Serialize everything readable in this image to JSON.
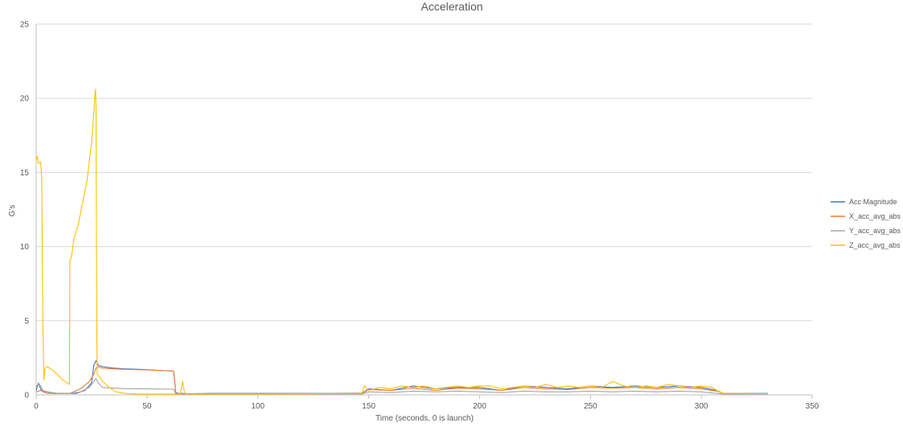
{
  "chart_data": {
    "type": "line",
    "title": "Acceleration",
    "xlabel": "Time (seconds, 0 is launch)",
    "ylabel": "G's",
    "xlim": [
      0,
      350
    ],
    "ylim": [
      0,
      25
    ],
    "xticks": [
      0,
      50,
      100,
      150,
      200,
      250,
      300,
      350
    ],
    "yticks": [
      0,
      5,
      10,
      15,
      20,
      25
    ],
    "grid": "horizontal",
    "legend_position": "right",
    "series": [
      {
        "name": "Acc Magnitude",
        "color": "#4472c4",
        "points": [
          [
            0,
            0.3
          ],
          [
            1,
            0.8
          ],
          [
            2,
            0.4
          ],
          [
            3,
            0.2
          ],
          [
            5,
            0.2
          ],
          [
            8,
            0.1
          ],
          [
            12,
            0.1
          ],
          [
            15,
            0.1
          ],
          [
            18,
            0.1
          ],
          [
            22,
            0.3
          ],
          [
            25,
            0.8
          ],
          [
            26,
            2.0
          ],
          [
            27,
            2.3
          ],
          [
            28,
            2.0
          ],
          [
            30,
            1.9
          ],
          [
            35,
            1.8
          ],
          [
            40,
            1.75
          ],
          [
            50,
            1.7
          ],
          [
            55,
            1.65
          ],
          [
            62,
            1.6
          ],
          [
            63,
            0.15
          ],
          [
            64,
            0.1
          ],
          [
            70,
            0.08
          ],
          [
            80,
            0.1
          ],
          [
            100,
            0.1
          ],
          [
            130,
            0.1
          ],
          [
            147,
            0.12
          ],
          [
            150,
            0.4
          ],
          [
            160,
            0.3
          ],
          [
            170,
            0.6
          ],
          [
            180,
            0.4
          ],
          [
            190,
            0.5
          ],
          [
            200,
            0.5
          ],
          [
            210,
            0.3
          ],
          [
            220,
            0.6
          ],
          [
            230,
            0.5
          ],
          [
            240,
            0.4
          ],
          [
            250,
            0.6
          ],
          [
            260,
            0.5
          ],
          [
            270,
            0.6
          ],
          [
            280,
            0.5
          ],
          [
            290,
            0.6
          ],
          [
            300,
            0.5
          ],
          [
            307,
            0.3
          ],
          [
            310,
            0.1
          ],
          [
            330,
            0.1
          ]
        ]
      },
      {
        "name": "X_acc_avg_abs",
        "color": "#ed7d31",
        "points": [
          [
            0,
            0.2
          ],
          [
            2,
            0.3
          ],
          [
            5,
            0.1
          ],
          [
            10,
            0.1
          ],
          [
            15,
            0.1
          ],
          [
            20,
            0.4
          ],
          [
            24,
            0.9
          ],
          [
            26,
            1.4
          ],
          [
            27,
            1.8
          ],
          [
            28,
            1.9
          ],
          [
            30,
            1.8
          ],
          [
            35,
            1.75
          ],
          [
            40,
            1.72
          ],
          [
            50,
            1.68
          ],
          [
            55,
            1.65
          ],
          [
            62,
            1.6
          ],
          [
            63,
            0.1
          ],
          [
            70,
            0.08
          ],
          [
            100,
            0.08
          ],
          [
            147,
            0.1
          ],
          [
            150,
            0.35
          ],
          [
            160,
            0.3
          ],
          [
            170,
            0.45
          ],
          [
            180,
            0.3
          ],
          [
            190,
            0.45
          ],
          [
            200,
            0.4
          ],
          [
            210,
            0.3
          ],
          [
            220,
            0.5
          ],
          [
            230,
            0.4
          ],
          [
            240,
            0.35
          ],
          [
            250,
            0.5
          ],
          [
            260,
            0.45
          ],
          [
            270,
            0.5
          ],
          [
            280,
            0.4
          ],
          [
            290,
            0.5
          ],
          [
            300,
            0.4
          ],
          [
            307,
            0.25
          ],
          [
            310,
            0.1
          ],
          [
            330,
            0.08
          ]
        ]
      },
      {
        "name": "Y_acc_avg_abs",
        "color": "#a5a5a5",
        "points": [
          [
            0,
            0.5
          ],
          [
            1,
            0.8
          ],
          [
            2,
            0.6
          ],
          [
            3,
            0.3
          ],
          [
            5,
            0.2
          ],
          [
            10,
            0.1
          ],
          [
            15,
            0.1
          ],
          [
            20,
            0.2
          ],
          [
            24,
            0.5
          ],
          [
            26,
            0.9
          ],
          [
            27,
            1.1
          ],
          [
            28,
            0.8
          ],
          [
            30,
            0.5
          ],
          [
            35,
            0.45
          ],
          [
            40,
            0.42
          ],
          [
            50,
            0.4
          ],
          [
            62,
            0.38
          ],
          [
            63,
            0.05
          ],
          [
            70,
            0.05
          ],
          [
            100,
            0.05
          ],
          [
            147,
            0.06
          ],
          [
            150,
            0.2
          ],
          [
            160,
            0.15
          ],
          [
            170,
            0.25
          ],
          [
            180,
            0.2
          ],
          [
            190,
            0.25
          ],
          [
            200,
            0.2
          ],
          [
            210,
            0.15
          ],
          [
            220,
            0.25
          ],
          [
            230,
            0.2
          ],
          [
            240,
            0.2
          ],
          [
            250,
            0.25
          ],
          [
            260,
            0.2
          ],
          [
            270,
            0.25
          ],
          [
            280,
            0.2
          ],
          [
            290,
            0.25
          ],
          [
            300,
            0.2
          ],
          [
            307,
            0.1
          ],
          [
            310,
            0.05
          ],
          [
            330,
            0.05
          ]
        ]
      },
      {
        "name": "Z_acc_avg_abs",
        "color": "#ffc000",
        "points": [
          [
            0,
            15.8
          ],
          [
            0.5,
            16.1
          ],
          [
            1,
            15.6
          ],
          [
            2,
            15.7
          ],
          [
            2.5,
            14.6
          ],
          [
            3,
            5.0
          ],
          [
            3.5,
            1.0
          ],
          [
            4,
            1.8
          ],
          [
            5,
            1.9
          ],
          [
            8,
            1.6
          ],
          [
            10,
            1.3
          ],
          [
            12,
            1.0
          ],
          [
            14,
            0.8
          ],
          [
            15,
            0.7
          ],
          [
            15.2,
            9.0
          ],
          [
            16,
            9.4
          ],
          [
            17,
            10.5
          ],
          [
            19,
            11.5
          ],
          [
            21,
            13.0
          ],
          [
            23,
            14.5
          ],
          [
            24,
            15.8
          ],
          [
            25,
            17.0
          ],
          [
            26,
            19.0
          ],
          [
            26.5,
            20.3
          ],
          [
            26.8,
            20.6
          ],
          [
            27,
            19.5
          ],
          [
            27.2,
            9.5
          ],
          [
            27.5,
            1.4
          ],
          [
            28,
            1.3
          ],
          [
            30,
            0.9
          ],
          [
            33,
            0.5
          ],
          [
            36,
            0.2
          ],
          [
            40,
            0.1
          ],
          [
            45,
            0.05
          ],
          [
            50,
            0.05
          ],
          [
            62,
            0.05
          ],
          [
            65,
            0.05
          ],
          [
            66,
            0.9
          ],
          [
            67,
            0.1
          ],
          [
            70,
            0.05
          ],
          [
            100,
            0.05
          ],
          [
            147,
            0.1
          ],
          [
            148,
            0.6
          ],
          [
            150,
            0.3
          ],
          [
            155,
            0.5
          ],
          [
            160,
            0.4
          ],
          [
            165,
            0.6
          ],
          [
            170,
            0.5
          ],
          [
            175,
            0.6
          ],
          [
            180,
            0.4
          ],
          [
            185,
            0.5
          ],
          [
            190,
            0.6
          ],
          [
            195,
            0.5
          ],
          [
            200,
            0.6
          ],
          [
            205,
            0.6
          ],
          [
            210,
            0.4
          ],
          [
            215,
            0.5
          ],
          [
            220,
            0.6
          ],
          [
            225,
            0.5
          ],
          [
            230,
            0.7
          ],
          [
            235,
            0.5
          ],
          [
            240,
            0.6
          ],
          [
            245,
            0.5
          ],
          [
            250,
            0.6
          ],
          [
            255,
            0.5
          ],
          [
            260,
            0.9
          ],
          [
            265,
            0.6
          ],
          [
            270,
            0.5
          ],
          [
            275,
            0.6
          ],
          [
            280,
            0.5
          ],
          [
            285,
            0.7
          ],
          [
            290,
            0.6
          ],
          [
            295,
            0.5
          ],
          [
            300,
            0.6
          ],
          [
            305,
            0.5
          ],
          [
            307,
            0.3
          ],
          [
            310,
            0.1
          ],
          [
            330,
            0.08
          ]
        ]
      }
    ]
  }
}
